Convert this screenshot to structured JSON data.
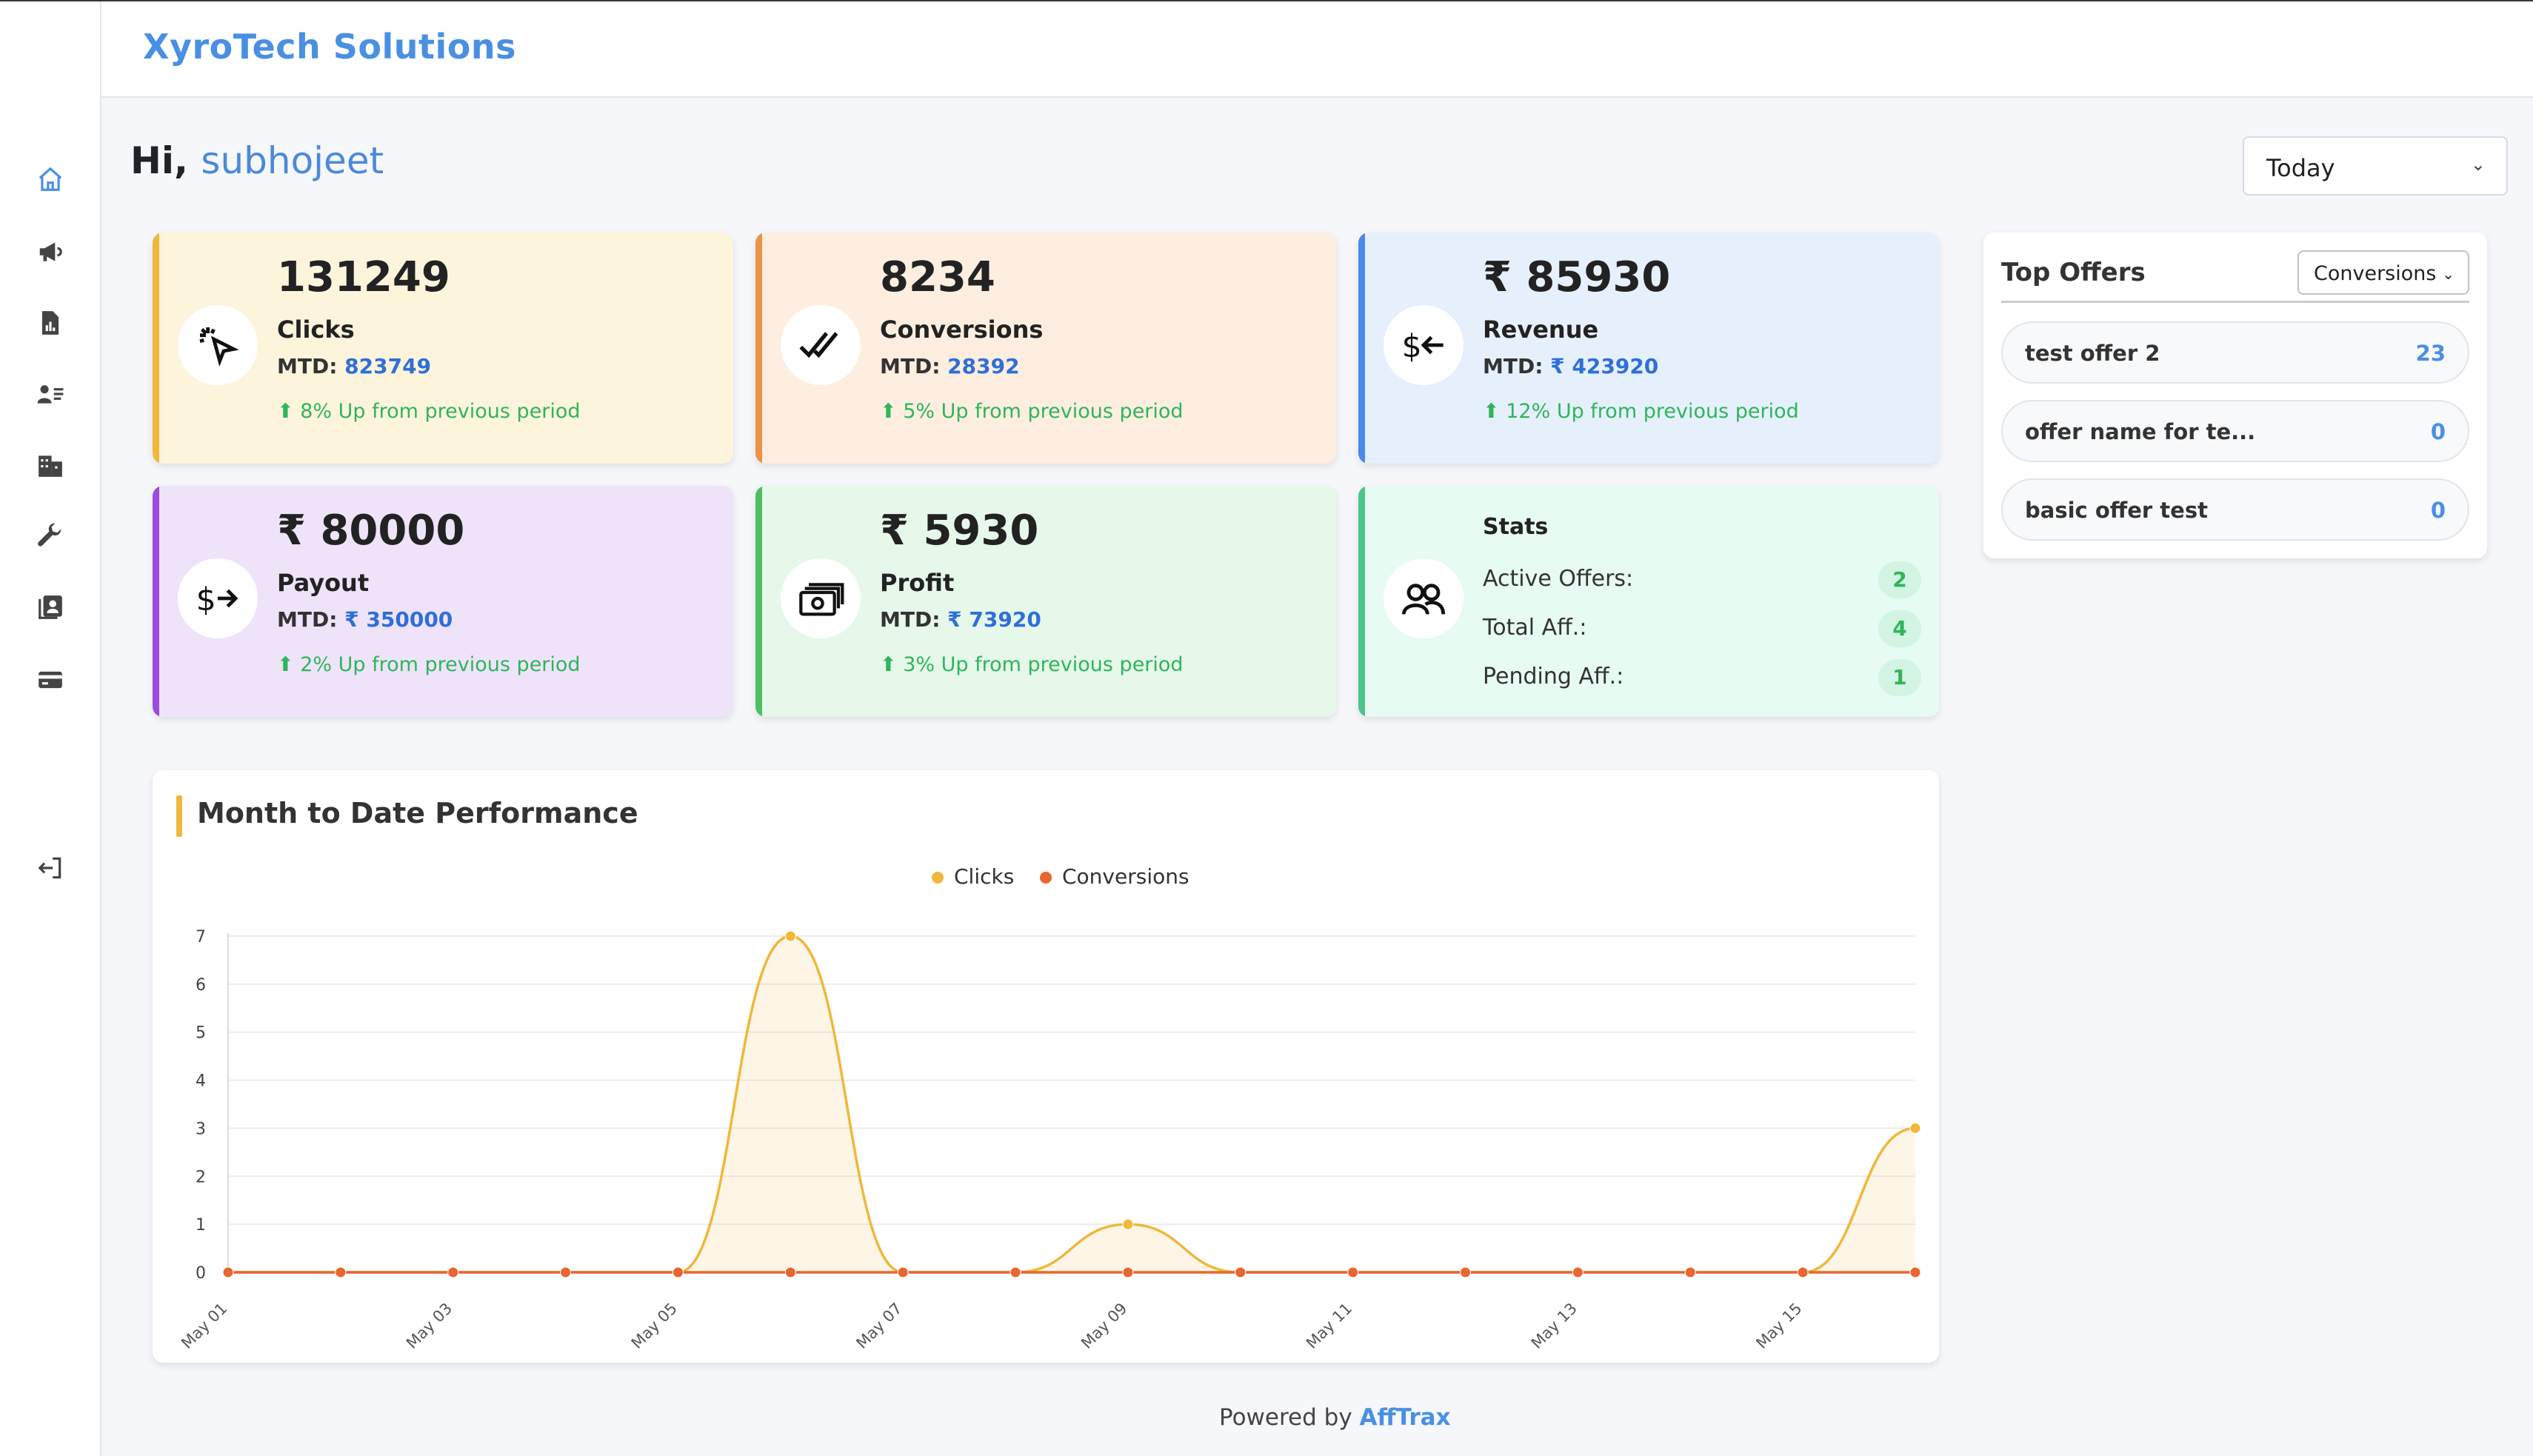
{
  "header": {
    "brand": "XyroTech Solutions"
  },
  "sidebar": {
    "icons": [
      "home-icon",
      "megaphone-icon",
      "report-icon",
      "users-icon",
      "building-icon",
      "wrench-icon",
      "contacts-icon",
      "card-icon",
      "logout-icon"
    ]
  },
  "greeting": {
    "prefix": "Hi,",
    "user": "subhojeet"
  },
  "period": {
    "selected": "Today"
  },
  "cards": {
    "clicks": {
      "value": "131249",
      "label": "Clicks",
      "mtd_prefix": "MTD:",
      "mtd": "823749",
      "trend": "8% Up from previous period"
    },
    "conversions": {
      "value": "8234",
      "label": "Conversions",
      "mtd_prefix": "MTD:",
      "mtd": "28392",
      "trend": "5% Up from previous period"
    },
    "revenue": {
      "value": "₹ 85930",
      "label": "Revenue",
      "mtd_prefix": "MTD:",
      "mtd": "₹ 423920",
      "trend": "12% Up from previous period"
    },
    "payout": {
      "value": "₹ 80000",
      "label": "Payout",
      "mtd_prefix": "MTD:",
      "mtd": "₹ 350000",
      "trend": "2% Up from previous period"
    },
    "profit": {
      "value": "₹ 5930",
      "label": "Profit",
      "mtd_prefix": "MTD:",
      "mtd": "₹ 73920",
      "trend": "3% Up from previous period"
    }
  },
  "stats": {
    "title": "Stats",
    "rows": [
      {
        "label": "Active Offers:",
        "value": "2"
      },
      {
        "label": "Total Aff.:",
        "value": "4"
      },
      {
        "label": "Pending Aff.:",
        "value": "1"
      }
    ]
  },
  "top_offers": {
    "title": "Top Offers",
    "metric": "Conversions",
    "items": [
      {
        "name": "test offer 2",
        "count": "23"
      },
      {
        "name": "offer name for te...",
        "count": "0"
      },
      {
        "name": "basic offer test",
        "count": "0"
      }
    ]
  },
  "chart_title": "Month to Date Performance",
  "chart_data": {
    "type": "area",
    "x": [
      "May 01",
      "May 02",
      "May 03",
      "May 04",
      "May 05",
      "May 06",
      "May 07",
      "May 08",
      "May 09",
      "May 10",
      "May 11",
      "May 12",
      "May 13",
      "May 14",
      "May 15",
      "May 16"
    ],
    "x_tick_labels": [
      "May 01",
      "May 03",
      "May 05",
      "May 07",
      "May 09",
      "May 11",
      "May 13",
      "May 15"
    ],
    "series": [
      {
        "name": "Clicks",
        "color": "#f0b73a",
        "values": [
          0,
          0,
          0,
          0,
          0,
          7,
          0,
          0,
          1,
          0,
          0,
          0,
          0,
          0,
          0,
          3
        ]
      },
      {
        "name": "Conversions",
        "color": "#e8662f",
        "values": [
          0,
          0,
          0,
          0,
          0,
          0,
          0,
          0,
          0,
          0,
          0,
          0,
          0,
          0,
          0,
          0
        ]
      }
    ],
    "ylim": [
      0,
      7
    ],
    "y_ticks": [
      0,
      1,
      2,
      3,
      4,
      5,
      6,
      7
    ],
    "legend": "top-center",
    "grid": true
  },
  "footer": {
    "prefix": "Powered by",
    "brand": "AffTrax"
  }
}
